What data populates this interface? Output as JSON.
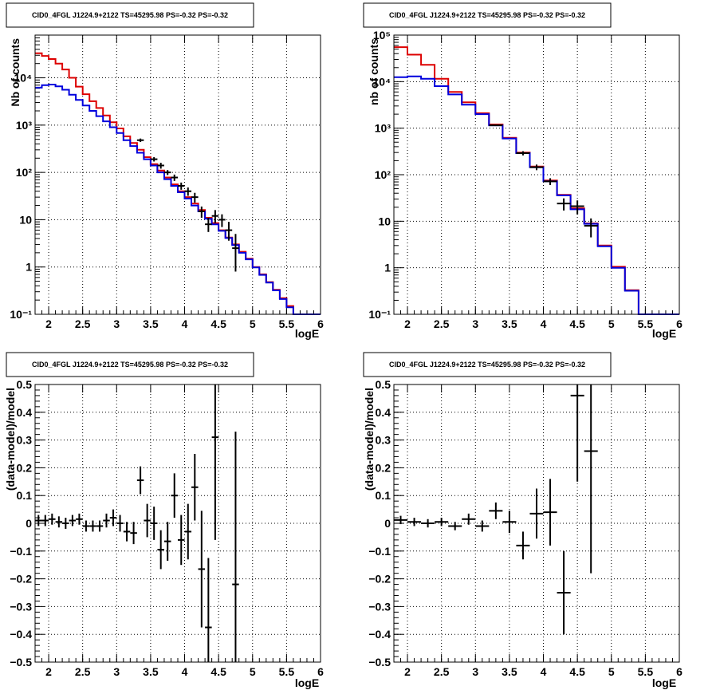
{
  "page": {
    "window_title": "CID0_4FGL J1224.9+2122 TS=45295.98 PS=-0.32 PS=-0.32"
  },
  "colors": {
    "model_total": "#dd0000",
    "model_source": "#0000dd",
    "data": "#000000"
  },
  "chart_data": [
    {
      "type": "line",
      "title": "CID0_4FGL J1224.9+2122 TS=45295.98 PS=-0.32 PS=-0.32",
      "xlabel": "logE",
      "ylabel": "Nb of counts",
      "yscale": "log",
      "xlim": [
        1.8,
        6.0
      ],
      "ylim": [
        0.1,
        80000
      ],
      "xticks": [
        "2",
        "2.5",
        "3",
        "3.5",
        "4",
        "4.5",
        "5",
        "5.5",
        "6"
      ],
      "yticks": [
        "10⁻¹",
        "1",
        "10",
        "10²",
        "10³",
        "10⁴"
      ],
      "grid": true,
      "bin_width": 0.1,
      "series": [
        {
          "role": "model_total",
          "color": "#dd0000",
          "x": [
            1.8,
            1.9,
            2.0,
            2.1,
            2.2,
            2.3,
            2.4,
            2.5,
            2.6,
            2.7,
            2.8,
            2.9,
            3.0,
            3.1,
            3.2,
            3.3,
            3.4,
            3.5,
            3.6,
            3.7,
            3.8,
            3.9,
            4.0,
            4.1,
            4.2,
            4.3,
            4.4,
            4.5,
            4.6,
            4.7,
            4.8,
            4.9,
            5.0,
            5.1,
            5.2,
            5.3,
            5.4,
            5.5,
            5.6,
            5.7,
            5.8,
            5.9
          ],
          "values": [
            33000,
            29000,
            25000,
            20000,
            15000,
            10000,
            6500,
            4500,
            3200,
            2300,
            1600,
            1150,
            850,
            580,
            420,
            300,
            210,
            150,
            110,
            78,
            56,
            40,
            30,
            22,
            16,
            11,
            8.5,
            6,
            4.2,
            3,
            2.1,
            1.5,
            1.0,
            0.7,
            0.48,
            0.33,
            0.22,
            0.15,
            0.1,
            0.1,
            0.1,
            0.1
          ]
        },
        {
          "role": "model_source",
          "color": "#0000dd",
          "x": [
            1.8,
            1.9,
            2.0,
            2.1,
            2.2,
            2.3,
            2.4,
            2.5,
            2.6,
            2.7,
            2.8,
            2.9,
            3.0,
            3.1,
            3.2,
            3.3,
            3.4,
            3.5,
            3.6,
            3.7,
            3.8,
            3.9,
            4.0,
            4.1,
            4.2,
            4.3,
            4.4,
            4.5,
            4.6,
            4.7,
            4.8,
            4.9,
            5.0,
            5.1,
            5.2,
            5.3,
            5.4,
            5.5,
            5.6,
            5.7,
            5.8,
            5.9
          ],
          "values": [
            6200,
            7000,
            7200,
            6600,
            5600,
            4400,
            3400,
            2600,
            2000,
            1550,
            1200,
            900,
            680,
            480,
            360,
            260,
            190,
            140,
            100,
            72,
            52,
            38,
            28,
            20,
            15,
            10.5,
            8,
            5.8,
            4.1,
            2.9,
            2.0,
            1.45,
            0.98,
            0.68,
            0.47,
            0.32,
            0.21,
            0.14,
            0.1,
            0.1,
            0.1,
            0.1
          ]
        }
      ],
      "points": {
        "x": [
          3.35,
          3.55,
          3.65,
          3.75,
          3.85,
          3.95,
          4.05,
          4.15,
          4.25,
          4.35,
          4.45,
          4.55,
          4.65,
          4.75
        ],
        "values": [
          480,
          190,
          140,
          100,
          78,
          52,
          40,
          30,
          15,
          8,
          12,
          10,
          6,
          2.5
        ],
        "err_low": [
          440,
          170,
          120,
          88,
          66,
          43,
          32,
          23,
          11,
          5.5,
          8.5,
          7,
          3.6,
          0.8
        ],
        "err_high": [
          520,
          210,
          160,
          112,
          90,
          61,
          48,
          37,
          19,
          11,
          16,
          13,
          9,
          5
        ]
      }
    },
    {
      "type": "line",
      "title": "CID0_4FGL J1224.9+2122 TS=45295.98 PS=-0.32 PS=-0.32",
      "xlabel": "logE",
      "ylabel": "nb of counts",
      "yscale": "log",
      "xlim": [
        1.8,
        6.0
      ],
      "ylim": [
        0.1,
        100000
      ],
      "xticks": [
        "2",
        "2.5",
        "3",
        "3.5",
        "4",
        "4.5",
        "5",
        "5.5",
        "6"
      ],
      "yticks": [
        "10⁻¹",
        "1",
        "10",
        "10²",
        "10³",
        "10⁴",
        "10⁵"
      ],
      "grid": true,
      "bin_width": 0.2,
      "series": [
        {
          "role": "model_total",
          "color": "#dd0000",
          "x": [
            1.8,
            2.0,
            2.2,
            2.4,
            2.6,
            2.8,
            3.0,
            3.2,
            3.4,
            3.6,
            3.8,
            4.0,
            4.2,
            4.4,
            4.6,
            4.8,
            5.0,
            5.2,
            5.4,
            5.6,
            5.8
          ],
          "values": [
            55000,
            38000,
            23000,
            11500,
            6000,
            3600,
            2100,
            1200,
            620,
            300,
            150,
            75,
            37,
            19,
            9,
            3.0,
            1.05,
            0.33,
            0.1,
            0.1,
            0.1
          ]
        },
        {
          "role": "model_source",
          "color": "#0000dd",
          "x": [
            1.8,
            2.0,
            2.2,
            2.4,
            2.6,
            2.8,
            3.0,
            3.2,
            3.4,
            3.6,
            3.8,
            4.0,
            4.2,
            4.4,
            4.6,
            4.8,
            5.0,
            5.2,
            5.4,
            5.6,
            5.8
          ],
          "values": [
            12500,
            13000,
            11500,
            8000,
            5300,
            3200,
            2000,
            1150,
            600,
            290,
            145,
            72,
            36,
            18,
            8.8,
            2.9,
            1.0,
            0.32,
            0.1,
            0.1,
            0.1
          ]
        }
      ],
      "points": {
        "x": [
          3.3,
          3.7,
          3.9,
          4.1,
          4.3,
          4.5,
          4.7
        ],
        "values": [
          1150,
          290,
          145,
          72,
          24,
          21,
          8
        ],
        "err_low": [
          1110,
          260,
          125,
          60,
          17,
          14,
          4.5
        ],
        "err_high": [
          1190,
          320,
          165,
          84,
          31,
          28,
          11.5
        ]
      }
    },
    {
      "type": "scatter",
      "title": "CID0_4FGL J1224.9+2122 TS=45295.98 PS=-0.32 PS=-0.32",
      "xlabel": "logE",
      "ylabel": "(data-model)/model",
      "xlim": [
        1.8,
        6.0
      ],
      "ylim": [
        -0.5,
        0.5
      ],
      "xticks": [
        "2",
        "2.5",
        "3",
        "3.5",
        "4",
        "4.5",
        "5",
        "5.5",
        "6"
      ],
      "yticks": [
        "−0.5",
        "−0.4",
        "−0.3",
        "−0.2",
        "−0.1",
        "0",
        "0.1",
        "0.2",
        "0.3",
        "0.4",
        "0.5"
      ],
      "grid": true,
      "bin_width": 0.1,
      "points": {
        "x": [
          1.85,
          1.95,
          2.05,
          2.15,
          2.25,
          2.35,
          2.45,
          2.55,
          2.65,
          2.75,
          2.85,
          2.95,
          3.05,
          3.15,
          3.25,
          3.35,
          3.45,
          3.55,
          3.65,
          3.75,
          3.85,
          3.95,
          4.05,
          4.15,
          4.25,
          4.35,
          4.45,
          4.75
        ],
        "values": [
          0.01,
          0.01,
          0.015,
          0.005,
          0.0,
          0.01,
          0.015,
          -0.01,
          -0.01,
          -0.01,
          0.01,
          0.02,
          0.0,
          -0.03,
          -0.035,
          0.155,
          0.01,
          0.0,
          -0.095,
          -0.065,
          0.1,
          -0.06,
          -0.03,
          0.13,
          -0.165,
          -0.375,
          0.31,
          -0.22
        ],
        "err": [
          0.02,
          0.02,
          0.02,
          0.02,
          0.02,
          0.02,
          0.02,
          0.02,
          0.02,
          0.02,
          0.025,
          0.03,
          0.03,
          0.035,
          0.04,
          0.05,
          0.06,
          0.06,
          0.07,
          0.07,
          0.08,
          0.09,
          0.1,
          0.12,
          0.21,
          0.25,
          0.37,
          0.55
        ]
      }
    },
    {
      "type": "scatter",
      "title": "CID0_4FGL J1224.9+2122 TS=45295.98 PS=-0.32 PS=-0.32",
      "xlabel": "logE",
      "ylabel": "(data-model)/model",
      "xlim": [
        1.8,
        6.0
      ],
      "ylim": [
        -0.5,
        0.5
      ],
      "xticks": [
        "2",
        "2.5",
        "3",
        "3.5",
        "4",
        "4.5",
        "5",
        "5.5",
        "6"
      ],
      "yticks": [
        "−0.5",
        "−0.4",
        "−0.3",
        "−0.2",
        "−0.1",
        "0",
        "0.1",
        "0.2",
        "0.3",
        "0.4",
        "0.5"
      ],
      "grid": true,
      "bin_width": 0.2,
      "points": {
        "x": [
          1.9,
          2.1,
          2.3,
          2.5,
          2.7,
          2.9,
          3.1,
          3.3,
          3.5,
          3.7,
          3.9,
          4.1,
          4.3,
          4.5,
          4.7
        ],
        "values": [
          0.012,
          0.005,
          0.0,
          0.005,
          -0.01,
          0.015,
          -0.01,
          0.045,
          0.005,
          -0.08,
          0.035,
          0.04,
          -0.25,
          0.46,
          0.26
        ],
        "err": [
          0.015,
          0.015,
          0.015,
          0.015,
          0.015,
          0.02,
          0.02,
          0.03,
          0.04,
          0.05,
          0.09,
          0.12,
          0.15,
          0.31,
          0.44
        ]
      }
    }
  ]
}
